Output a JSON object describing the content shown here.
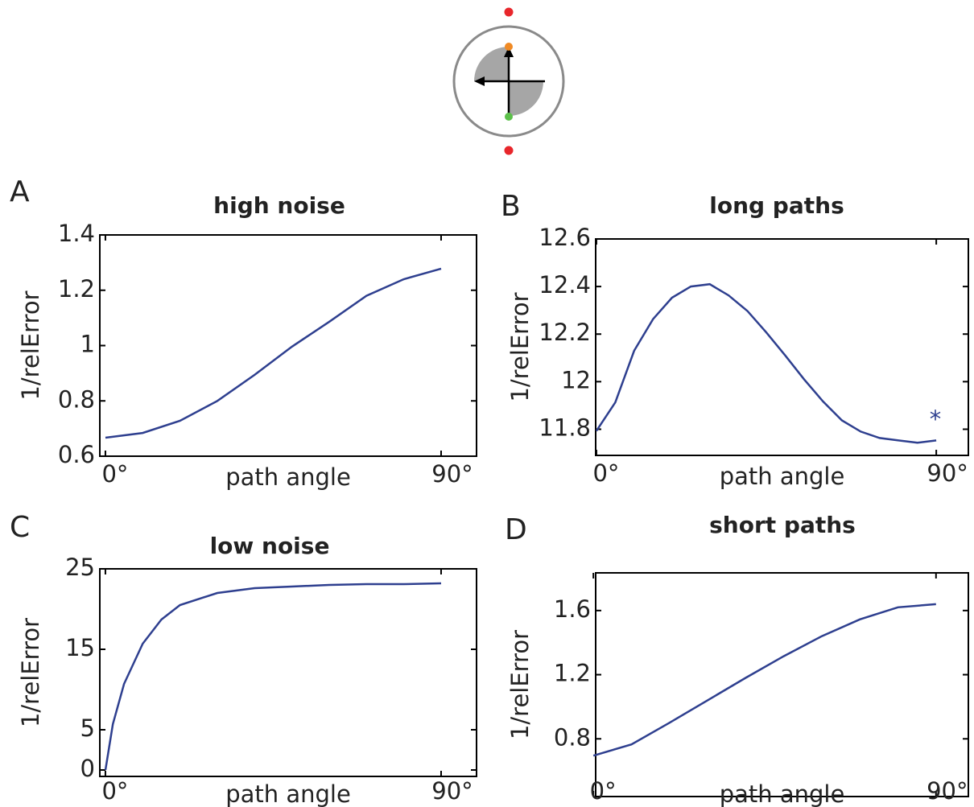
{
  "chart_data": [
    {
      "type": "line",
      "panel_label": "A",
      "title": "high noise",
      "x_label": "path angle",
      "y_label": "1/relError",
      "x": [
        0,
        10,
        20,
        30,
        40,
        50,
        60,
        70,
        80,
        90
      ],
      "values": [
        0.667,
        0.684,
        0.728,
        0.8,
        0.894,
        0.996,
        1.086,
        1.18,
        1.24,
        1.278
      ],
      "color": "#2e3f8f",
      "xlim": [
        -1.5,
        99.5
      ],
      "ylim": [
        0.6,
        1.4
      ],
      "xticks": [
        {
          "value": 0,
          "label": "0°"
        },
        {
          "value": 90,
          "label": "90°"
        }
      ],
      "yticks": [
        0.6,
        0.8,
        1,
        1.2,
        1.4
      ]
    },
    {
      "type": "line",
      "panel_label": "B",
      "title": "long paths",
      "x_label": "path angle",
      "y_label": "1/relError",
      "x": [
        0,
        5,
        10,
        15,
        20,
        25,
        30,
        35,
        40,
        45,
        50,
        55,
        60,
        65,
        70,
        75,
        80,
        85,
        90
      ],
      "values": [
        11.793,
        11.913,
        12.13,
        12.263,
        12.353,
        12.4,
        12.41,
        12.363,
        12.297,
        12.207,
        12.11,
        12.01,
        11.917,
        11.837,
        11.79,
        11.763,
        11.753,
        11.743,
        11.753
      ],
      "color": "#2e3f8f",
      "xlim": [
        -0.2,
        98.5
      ],
      "ylim": [
        11.69,
        12.6
      ],
      "xticks": [
        {
          "value": 0,
          "label": "0°"
        },
        {
          "value": 90,
          "label": "90°"
        }
      ],
      "yticks": [
        11.8,
        12,
        12.2,
        12.4,
        12.6
      ],
      "annotation": "*"
    },
    {
      "type": "line",
      "panel_label": "C",
      "title": "low noise",
      "x_label": "path angle",
      "y_label": "1/relError",
      "x": [
        0,
        2,
        5,
        10,
        15,
        20,
        30,
        40,
        50,
        60,
        70,
        80,
        90
      ],
      "values": [
        0,
        5.7,
        10.7,
        15.7,
        18.7,
        20.5,
        22,
        22.6,
        22.8,
        23,
        23.1,
        23.1,
        23.2
      ],
      "color": "#2e3f8f",
      "xlim": [
        -1.5,
        99.5
      ],
      "ylim": [
        -0.8,
        25
      ],
      "xticks": [
        {
          "value": 0,
          "label": "0°"
        },
        {
          "value": 90,
          "label": "90°"
        }
      ],
      "yticks": [
        0,
        5,
        15,
        25
      ]
    },
    {
      "type": "line",
      "panel_label": "D",
      "title": "short paths",
      "x_label": "path angle",
      "y_label": "1/relError",
      "x": [
        0,
        10,
        20,
        30,
        40,
        50,
        60,
        70,
        80,
        90
      ],
      "values": [
        0.695,
        0.765,
        0.9,
        1.04,
        1.18,
        1.315,
        1.44,
        1.545,
        1.62,
        1.64
      ],
      "color": "#2e3f8f",
      "xlim": [
        0.6,
        98.5
      ],
      "ylim": [
        0.44,
        1.835
      ],
      "xticks": [
        {
          "value": 0,
          "label": "0°"
        },
        {
          "value": 90,
          "label": "90°"
        }
      ],
      "yticks": [
        0.8,
        1.2,
        1.6
      ]
    }
  ]
}
